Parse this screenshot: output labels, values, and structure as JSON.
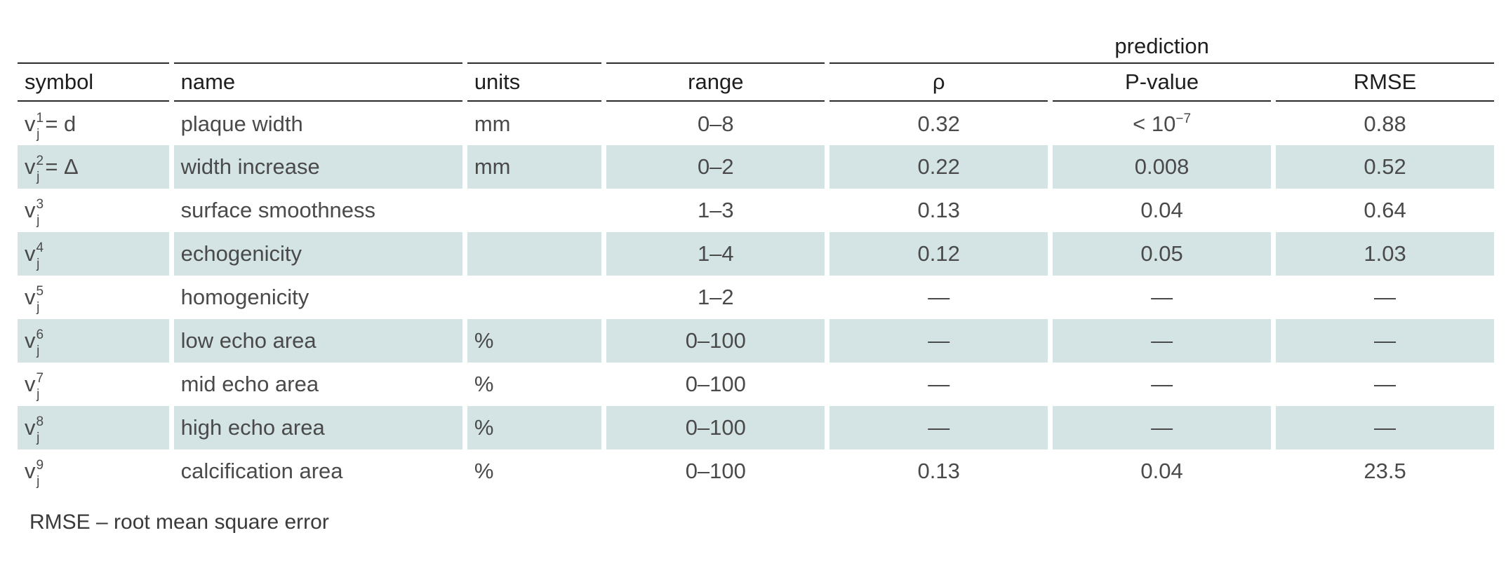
{
  "table": {
    "group_header": "prediction",
    "columns": [
      "symbol",
      "name",
      "units",
      "range",
      "ρ",
      "P-value",
      "RMSE"
    ],
    "rows": [
      {
        "sym_base": "v",
        "sym_sub": "j",
        "sym_sup": "1",
        "sym_rest": "= d",
        "name": "plaque width",
        "units": "mm",
        "range": "0–8",
        "rho": "0.32",
        "pval_base": "< 10",
        "pval_sup": "−7",
        "rmse": "0.88",
        "shaded": false
      },
      {
        "sym_base": "v",
        "sym_sub": "j",
        "sym_sup": "2",
        "sym_rest": "= Δ",
        "name": "width increase",
        "units": "mm",
        "range": "0–2",
        "rho": "0.22",
        "pval_base": "0.008",
        "pval_sup": "",
        "rmse": "0.52",
        "shaded": true
      },
      {
        "sym_base": "v",
        "sym_sub": "j",
        "sym_sup": "3",
        "sym_rest": "",
        "name": "surface smoothness",
        "units": "",
        "range": "1–3",
        "rho": "0.13",
        "pval_base": "0.04",
        "pval_sup": "",
        "rmse": "0.64",
        "shaded": false
      },
      {
        "sym_base": "v",
        "sym_sub": "j",
        "sym_sup": "4",
        "sym_rest": "",
        "name": "echogenicity",
        "units": "",
        "range": "1–4",
        "rho": "0.12",
        "pval_base": "0.05",
        "pval_sup": "",
        "rmse": "1.03",
        "shaded": true
      },
      {
        "sym_base": "v",
        "sym_sub": "j",
        "sym_sup": "5",
        "sym_rest": "",
        "name": "homogenicity",
        "units": "",
        "range": "1–2",
        "rho": "—",
        "pval_base": "—",
        "pval_sup": "",
        "rmse": "—",
        "shaded": false
      },
      {
        "sym_base": "v",
        "sym_sub": "j",
        "sym_sup": "6",
        "sym_rest": "",
        "name": "low echo area",
        "units": "%",
        "range": "0–100",
        "rho": "—",
        "pval_base": "—",
        "pval_sup": "",
        "rmse": "—",
        "shaded": true
      },
      {
        "sym_base": "v",
        "sym_sub": "j",
        "sym_sup": "7",
        "sym_rest": "",
        "name": "mid echo area",
        "units": "%",
        "range": "0–100",
        "rho": "—",
        "pval_base": "—",
        "pval_sup": "",
        "rmse": "—",
        "shaded": false
      },
      {
        "sym_base": "v",
        "sym_sub": "j",
        "sym_sup": "8",
        "sym_rest": "",
        "name": "high echo area",
        "units": "%",
        "range": "0–100",
        "rho": "—",
        "pval_base": "—",
        "pval_sup": "",
        "rmse": "—",
        "shaded": true
      },
      {
        "sym_base": "v",
        "sym_sub": "j",
        "sym_sup": "9",
        "sym_rest": "",
        "name": "calcification area",
        "units": "%",
        "range": "0–100",
        "rho": "0.13",
        "pval_base": "0.04",
        "pval_sup": "",
        "rmse": "23.5",
        "shaded": false
      }
    ]
  },
  "footnote": "RMSE – root mean square error",
  "colors": {
    "row_shade": "#d4e4e5",
    "rule": "#2b2b2b",
    "text": "#4a4a4a"
  }
}
